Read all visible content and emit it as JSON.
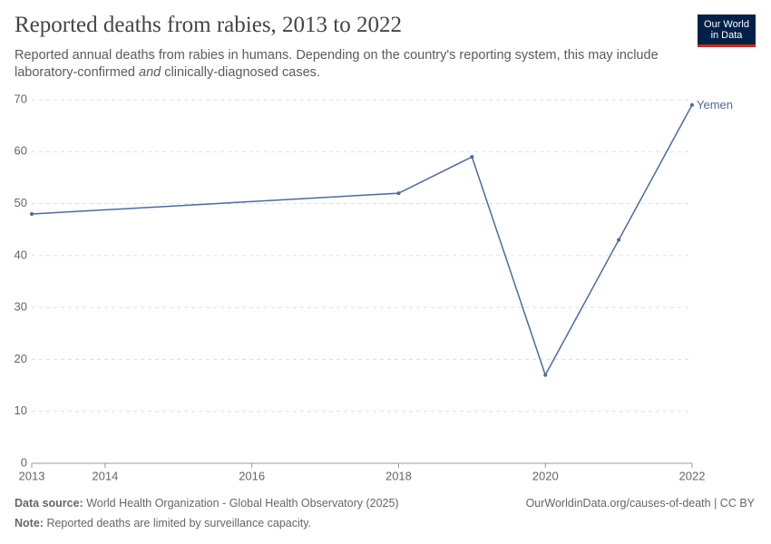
{
  "header": {
    "title": "Reported deaths from rabies, 2013 to 2022",
    "subtitle_line1": "Reported annual deaths from rabies in humans. Depending on the country's reporting system, this may include",
    "subtitle_line2": [
      "laboratory-confirmed",
      "and",
      "clinically-diagnosed cases."
    ],
    "logo": [
      "Our World",
      "in Data"
    ]
  },
  "chart_data": {
    "type": "line",
    "x": [
      2013,
      2018,
      2019,
      2020,
      2021,
      2022
    ],
    "series": [
      {
        "name": "Yemen",
        "color": "#4c6a9c",
        "values": [
          48,
          52,
          59,
          17,
          43,
          69
        ]
      }
    ],
    "xlim": [
      2013,
      2022
    ],
    "xticks": [
      2013,
      2014,
      2016,
      2018,
      2020,
      2022
    ],
    "ylim": [
      0,
      70
    ],
    "yticks": [
      0,
      10,
      20,
      30,
      40,
      50,
      60,
      70
    ],
    "grid": true
  },
  "footer": {
    "source_label": "Data source:",
    "source": "World Health Organization - Global Health Observatory (2025)",
    "url": "OurWorldinData.org/causes-of-death | CC BY",
    "note_label": "Note:",
    "note": "Reported deaths are limited by surveillance capacity."
  }
}
